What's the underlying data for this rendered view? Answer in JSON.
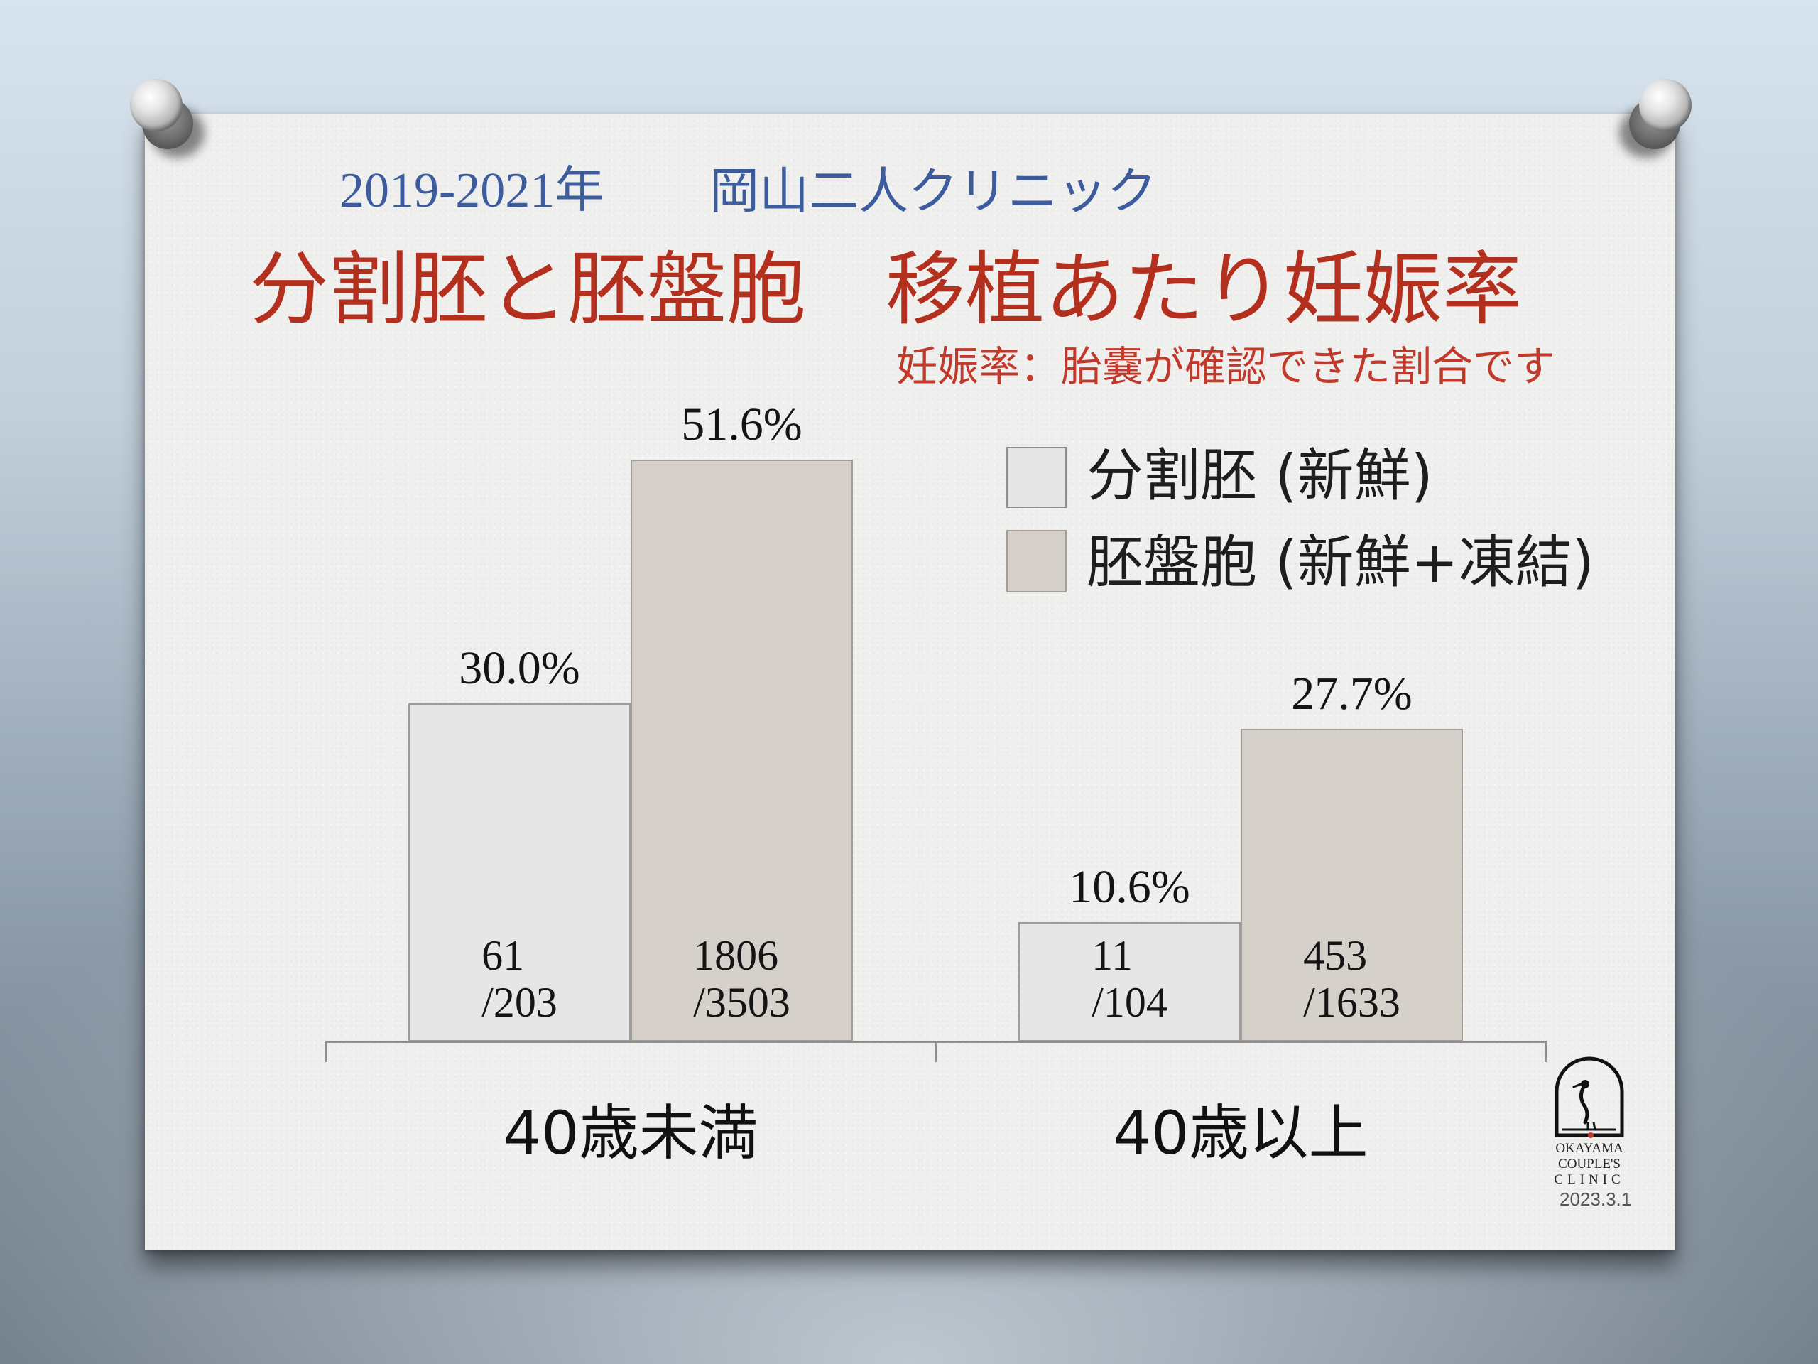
{
  "header": {
    "years": "2019-2021年",
    "clinic": "岡山二人クリニック"
  },
  "title": "分割胚と胚盤胞　移植あたり妊娠率",
  "subtitle": "妊娠率：胎嚢が確認できた割合です",
  "colors": {
    "header_text": "#3d5c9e",
    "title_text": "#b3301f",
    "subtitle_text": "#c0392b"
  },
  "chart_data": {
    "type": "bar",
    "categories": [
      "40歳未満",
      "40歳以上"
    ],
    "series": [
      {
        "name": "分割胚 (新鮮)",
        "values": [
          30.0,
          10.6
        ],
        "value_labels": [
          "30.0%",
          "10.6%"
        ],
        "numerators": [
          "61",
          "11"
        ],
        "denominators": [
          "/203",
          "/104"
        ],
        "color": "#e6e6e6"
      },
      {
        "name": "胚盤胞 (新鮮+凍結)",
        "values": [
          51.6,
          27.7
        ],
        "value_labels": [
          "51.6%",
          "27.7%"
        ],
        "numerators": [
          "1806",
          "453"
        ],
        "denominators": [
          "/3503",
          "/1633"
        ],
        "color": "#d6d0ca"
      }
    ],
    "legend": "top-right",
    "grid": false,
    "y_axis_shown": false
  },
  "logo": {
    "line1": "OKAYAMA",
    "line2": "COUPLE'S",
    "line3": "CLINIC"
  },
  "date": "2023.3.1"
}
